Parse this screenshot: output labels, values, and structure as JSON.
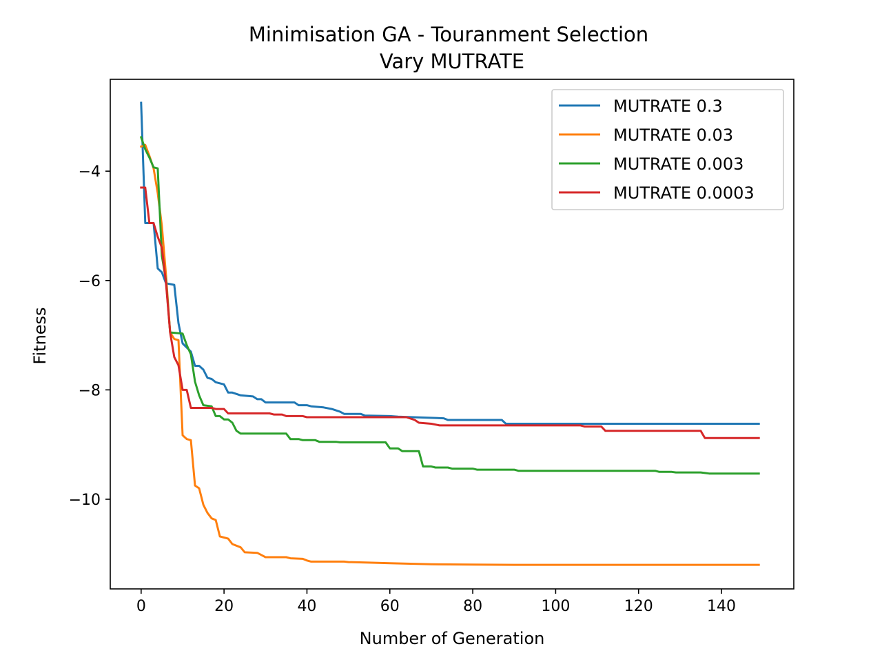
{
  "chart_data": {
    "type": "line",
    "title": "Minimisation GA - Touranment Selection",
    "subtitle": "Vary MUTRATE",
    "xlabel": "Number of Generation",
    "ylabel": "Fitness",
    "xlim": [
      -7.45,
      157.45
    ],
    "ylim": [
      -11.64,
      -2.32
    ],
    "xticks": [
      0,
      20,
      40,
      60,
      80,
      100,
      120,
      140
    ],
    "yticks": [
      -10,
      -8,
      -6,
      -4
    ],
    "xtick_labels": [
      "0",
      "20",
      "40",
      "60",
      "80",
      "100",
      "120",
      "140"
    ],
    "ytick_labels": [
      "−10",
      "−8",
      "−6",
      "−4"
    ],
    "grid": false,
    "legend_position": "upper right",
    "series": [
      {
        "name": "MUTRATE 0.3",
        "color": "#1f77b4",
        "points": [
          [
            0,
            -2.75
          ],
          [
            1,
            -4.95
          ],
          [
            3,
            -4.95
          ],
          [
            4,
            -5.78
          ],
          [
            5,
            -5.85
          ],
          [
            6,
            -6.05
          ],
          [
            8,
            -6.08
          ],
          [
            9,
            -6.78
          ],
          [
            10,
            -7.15
          ],
          [
            12,
            -7.3
          ],
          [
            13,
            -7.56
          ],
          [
            14,
            -7.56
          ],
          [
            15,
            -7.63
          ],
          [
            16,
            -7.78
          ],
          [
            17,
            -7.8
          ],
          [
            18,
            -7.86
          ],
          [
            20,
            -7.9
          ],
          [
            21,
            -8.05
          ],
          [
            22,
            -8.05
          ],
          [
            24,
            -8.1
          ],
          [
            27,
            -8.12
          ],
          [
            28,
            -8.17
          ],
          [
            29,
            -8.17
          ],
          [
            30,
            -8.23
          ],
          [
            37,
            -8.23
          ],
          [
            38,
            -8.28
          ],
          [
            40,
            -8.28
          ],
          [
            41,
            -8.3
          ],
          [
            44,
            -8.32
          ],
          [
            46,
            -8.35
          ],
          [
            48,
            -8.4
          ],
          [
            49,
            -8.44
          ],
          [
            53,
            -8.44
          ],
          [
            54,
            -8.47
          ],
          [
            60,
            -8.48
          ],
          [
            62,
            -8.49
          ],
          [
            73,
            -8.52
          ],
          [
            74,
            -8.55
          ],
          [
            87,
            -8.55
          ],
          [
            88,
            -8.62
          ],
          [
            149,
            -8.62
          ]
        ]
      },
      {
        "name": "MUTRATE 0.03",
        "color": "#ff7f0e",
        "points": [
          [
            0,
            -3.55
          ],
          [
            1,
            -3.52
          ],
          [
            2,
            -3.72
          ],
          [
            3,
            -3.95
          ],
          [
            4,
            -4.4
          ],
          [
            5,
            -5.0
          ],
          [
            6,
            -5.9
          ],
          [
            7,
            -6.95
          ],
          [
            8,
            -7.07
          ],
          [
            9,
            -7.09
          ],
          [
            10,
            -8.83
          ],
          [
            11,
            -8.9
          ],
          [
            12,
            -8.92
          ],
          [
            13,
            -9.75
          ],
          [
            14,
            -9.8
          ],
          [
            15,
            -10.1
          ],
          [
            16,
            -10.25
          ],
          [
            17,
            -10.35
          ],
          [
            18,
            -10.38
          ],
          [
            19,
            -10.68
          ],
          [
            20,
            -10.7
          ],
          [
            21,
            -10.72
          ],
          [
            22,
            -10.82
          ],
          [
            24,
            -10.88
          ],
          [
            25,
            -10.97
          ],
          [
            28,
            -10.98
          ],
          [
            29,
            -11.02
          ],
          [
            30,
            -11.06
          ],
          [
            35,
            -11.06
          ],
          [
            36,
            -11.08
          ],
          [
            39,
            -11.09
          ],
          [
            40,
            -11.12
          ],
          [
            41,
            -11.14
          ],
          [
            49,
            -11.14
          ],
          [
            50,
            -11.15
          ],
          [
            55,
            -11.16
          ],
          [
            60,
            -11.17
          ],
          [
            65,
            -11.18
          ],
          [
            70,
            -11.19
          ],
          [
            80,
            -11.195
          ],
          [
            90,
            -11.2
          ],
          [
            149,
            -11.2
          ]
        ]
      },
      {
        "name": "MUTRATE 0.003",
        "color": "#2ca02c",
        "points": [
          [
            0,
            -3.38
          ],
          [
            1,
            -3.6
          ],
          [
            2,
            -3.75
          ],
          [
            3,
            -3.93
          ],
          [
            4,
            -3.95
          ],
          [
            5,
            -5.55
          ],
          [
            6,
            -6.0
          ],
          [
            7,
            -6.95
          ],
          [
            10,
            -6.97
          ],
          [
            11,
            -7.18
          ],
          [
            12,
            -7.35
          ],
          [
            13,
            -7.85
          ],
          [
            14,
            -8.1
          ],
          [
            15,
            -8.28
          ],
          [
            17,
            -8.3
          ],
          [
            18,
            -8.48
          ],
          [
            19,
            -8.48
          ],
          [
            20,
            -8.54
          ],
          [
            21,
            -8.54
          ],
          [
            22,
            -8.6
          ],
          [
            23,
            -8.75
          ],
          [
            24,
            -8.8
          ],
          [
            35,
            -8.8
          ],
          [
            36,
            -8.9
          ],
          [
            38,
            -8.9
          ],
          [
            39,
            -8.92
          ],
          [
            42,
            -8.92
          ],
          [
            43,
            -8.95
          ],
          [
            47,
            -8.95
          ],
          [
            48,
            -8.96
          ],
          [
            59,
            -8.96
          ],
          [
            60,
            -9.07
          ],
          [
            62,
            -9.07
          ],
          [
            63,
            -9.12
          ],
          [
            67,
            -9.12
          ],
          [
            68,
            -9.4
          ],
          [
            70,
            -9.4
          ],
          [
            71,
            -9.42
          ],
          [
            74,
            -9.42
          ],
          [
            75,
            -9.44
          ],
          [
            80,
            -9.44
          ],
          [
            81,
            -9.46
          ],
          [
            90,
            -9.46
          ],
          [
            91,
            -9.48
          ],
          [
            124,
            -9.48
          ],
          [
            125,
            -9.5
          ],
          [
            128,
            -9.5
          ],
          [
            129,
            -9.51
          ],
          [
            135,
            -9.51
          ],
          [
            136,
            -9.52
          ],
          [
            137,
            -9.53
          ],
          [
            149,
            -9.53
          ]
        ]
      },
      {
        "name": "MUTRATE 0.0003",
        "color": "#d62728",
        "points": [
          [
            0,
            -4.3
          ],
          [
            1,
            -4.3
          ],
          [
            2,
            -4.95
          ],
          [
            3,
            -4.95
          ],
          [
            4,
            -5.2
          ],
          [
            5,
            -5.4
          ],
          [
            6,
            -6.05
          ],
          [
            7,
            -6.95
          ],
          [
            8,
            -7.4
          ],
          [
            9,
            -7.55
          ],
          [
            10,
            -8.0
          ],
          [
            11,
            -8.0
          ],
          [
            12,
            -8.33
          ],
          [
            17,
            -8.33
          ],
          [
            18,
            -8.35
          ],
          [
            20,
            -8.35
          ],
          [
            21,
            -8.43
          ],
          [
            31,
            -8.43
          ],
          [
            32,
            -8.45
          ],
          [
            34,
            -8.45
          ],
          [
            35,
            -8.48
          ],
          [
            39,
            -8.48
          ],
          [
            40,
            -8.5
          ],
          [
            64,
            -8.5
          ],
          [
            66,
            -8.55
          ],
          [
            67,
            -8.6
          ],
          [
            70,
            -8.62
          ],
          [
            72,
            -8.65
          ],
          [
            106,
            -8.65
          ],
          [
            107,
            -8.67
          ],
          [
            111,
            -8.67
          ],
          [
            112,
            -8.75
          ],
          [
            135,
            -8.75
          ],
          [
            136,
            -8.88
          ],
          [
            149,
            -8.88
          ]
        ]
      }
    ]
  }
}
